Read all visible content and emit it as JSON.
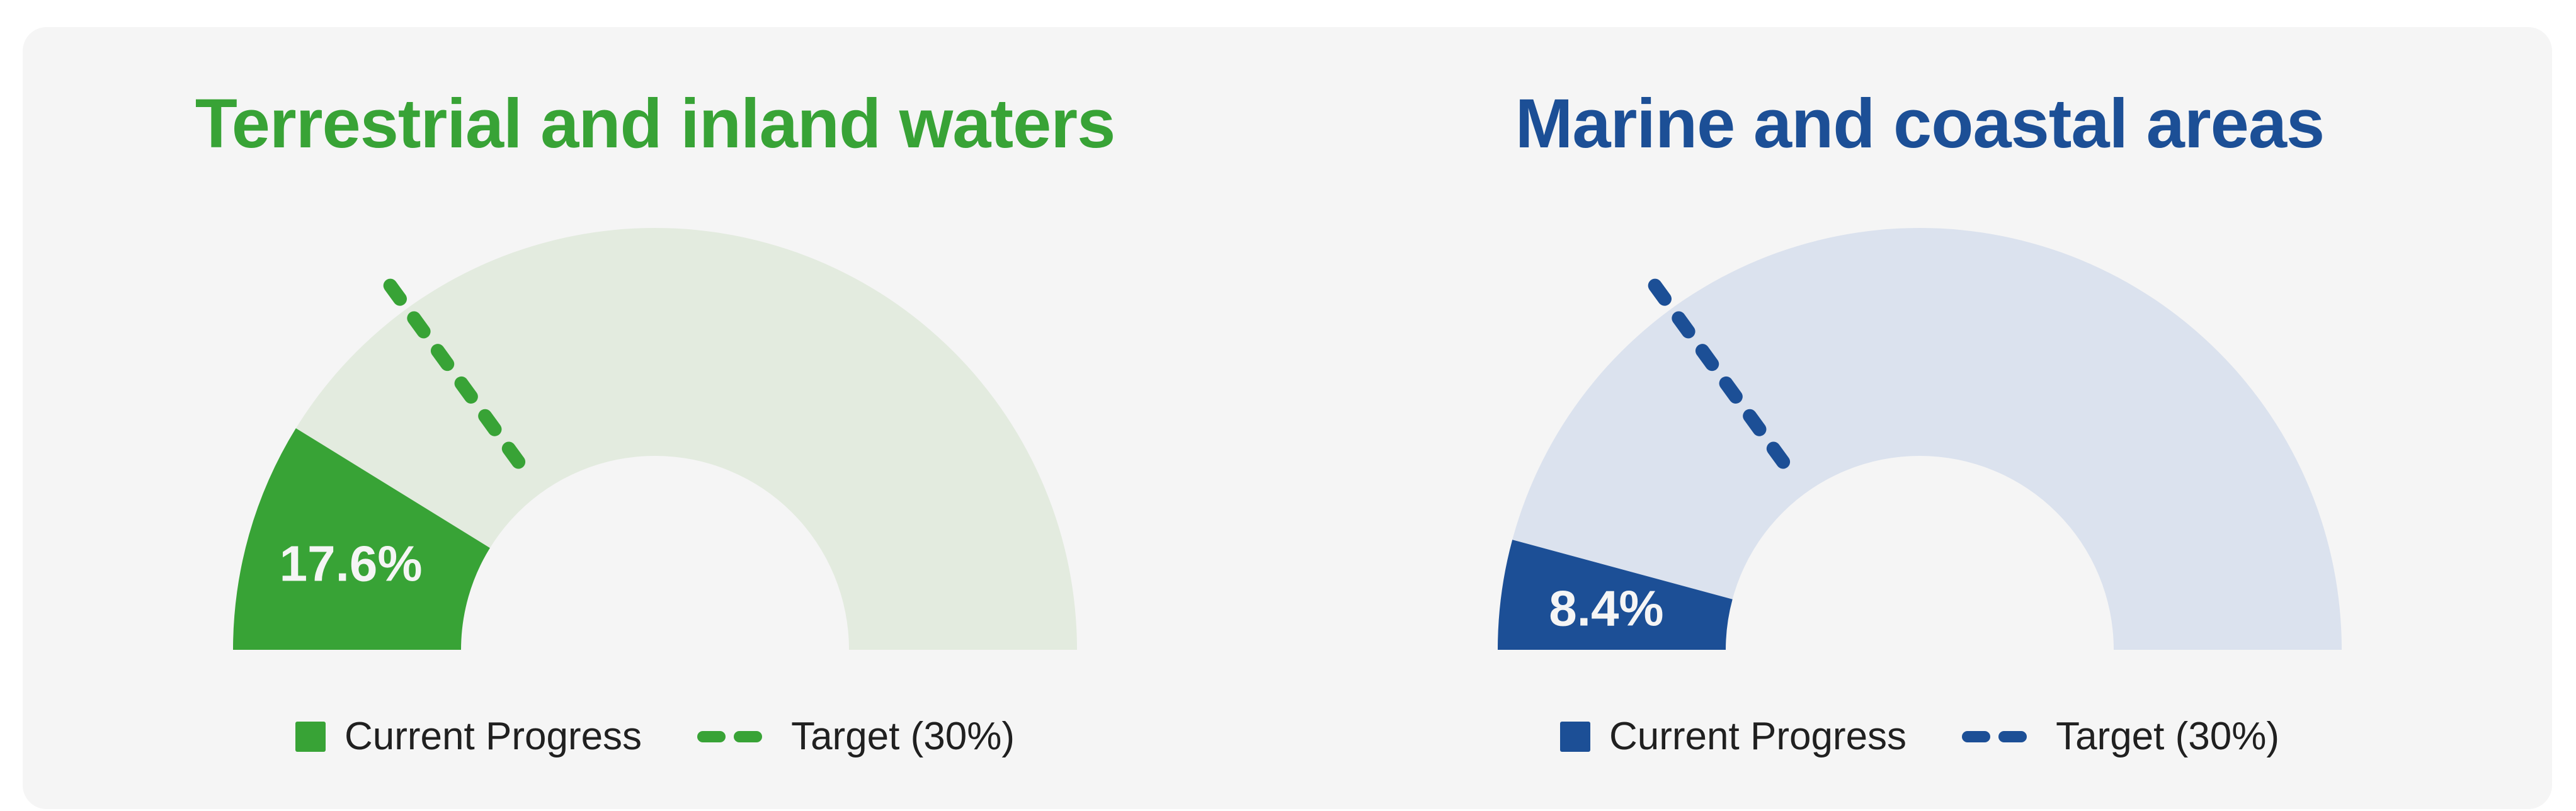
{
  "canvas": {
    "page_bg": "#ffffff",
    "panel_bg": "#f5f5f5",
    "legend_text_color": "#202020"
  },
  "chart_data": [
    {
      "type": "gauge",
      "title": "Terrestrial and inland waters",
      "series": [
        {
          "name": "Current Progress",
          "value": 17.6
        }
      ],
      "target": {
        "name": "Target (30%)",
        "value": 30
      },
      "unit": "%",
      "range": [
        0,
        100
      ],
      "value_label": "17.6%",
      "colors": {
        "fill": "#38a336",
        "track": "#e3ebdf",
        "title": "#38a336",
        "value_text": "#f5f5f5"
      },
      "legend": [
        {
          "label": "Current Progress",
          "marker": "square"
        },
        {
          "label": "Target (30%)",
          "marker": "dashed-line"
        }
      ],
      "legend_position": "bottom"
    },
    {
      "type": "gauge",
      "title": "Marine and coastal areas",
      "series": [
        {
          "name": "Current Progress",
          "value": 8.4
        }
      ],
      "target": {
        "name": "Target (30%)",
        "value": 30
      },
      "unit": "%",
      "range": [
        0,
        100
      ],
      "value_label": "8.4%",
      "colors": {
        "fill": "#1c4f96",
        "track": "#dbe2ee",
        "title": "#1c4f96",
        "value_text": "#f5f5f5"
      },
      "legend": [
        {
          "label": "Current Progress",
          "marker": "square"
        },
        {
          "label": "Target (30%)",
          "marker": "dashed-line"
        }
      ],
      "legend_position": "bottom"
    }
  ]
}
